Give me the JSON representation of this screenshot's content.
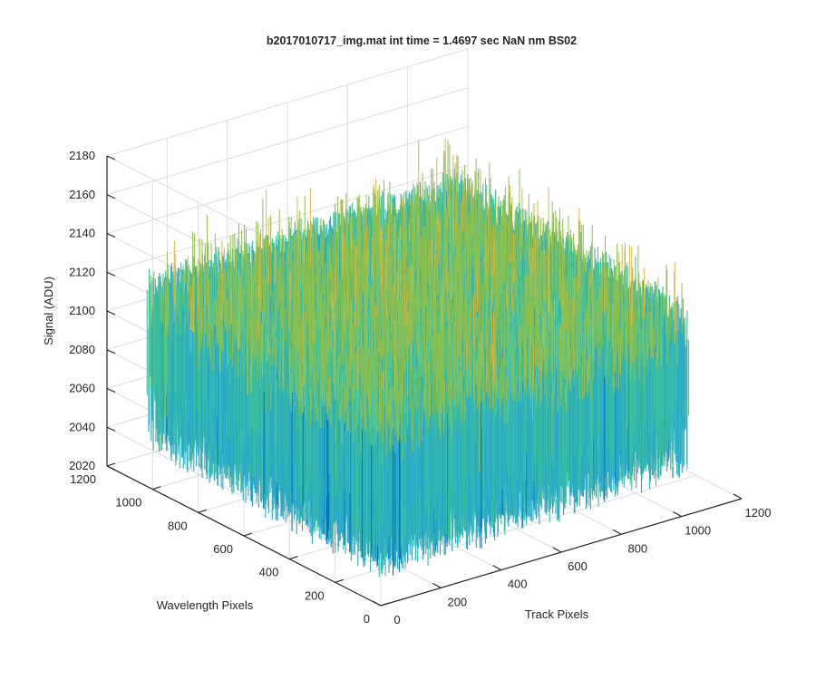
{
  "chart_data": {
    "type": "surface",
    "title": "b2017010717_img.mat int time = 1.4697 sec  NaN nm BS02",
    "xlabel": "Track Pixels",
    "ylabel": "Wavelength Pixels",
    "zlabel": "Signal (ADU)",
    "xlim": [
      0,
      1200
    ],
    "ylim": [
      0,
      1200
    ],
    "zlim": [
      2020,
      2180
    ],
    "xticks": [
      "0",
      "200",
      "400",
      "600",
      "800",
      "1000",
      "1200"
    ],
    "yticks": [
      "0",
      "200",
      "400",
      "600",
      "800",
      "1000",
      "1200"
    ],
    "zticks": [
      "2020",
      "2040",
      "2060",
      "2080",
      "2100",
      "2120",
      "2140",
      "2160",
      "2180"
    ],
    "data_extent": {
      "x": [
        0,
        1024
      ],
      "y": [
        0,
        1024
      ]
    },
    "signal_profile": {
      "mean_near_origin": 2088,
      "mean_far_corner": 2100,
      "noise_min": 2030,
      "noise_max": 2170
    },
    "colormap": [
      "#0072bd",
      "#2ba9c9",
      "#3cbf9b",
      "#8dc04f",
      "#e6b33c"
    ],
    "grid": true,
    "box": false
  }
}
